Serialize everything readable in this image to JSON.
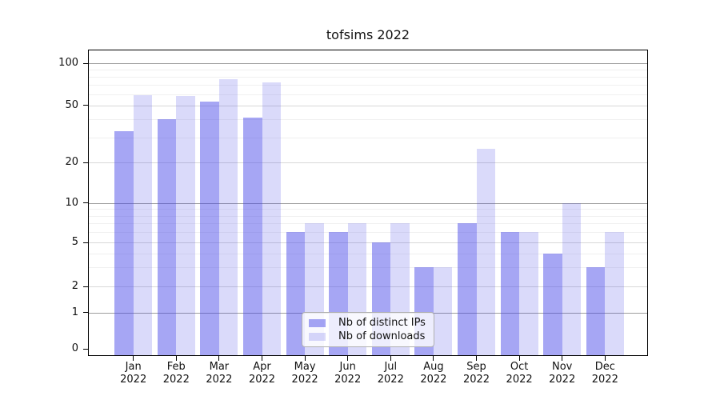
{
  "title": "tofsims 2022",
  "chart_data": {
    "type": "bar",
    "title": "tofsims 2022",
    "categories": [
      "Jan",
      "Feb",
      "Mar",
      "Apr",
      "May",
      "Jun",
      "Jul",
      "Aug",
      "Sep",
      "Oct",
      "Nov",
      "Dec"
    ],
    "category_year": "2022",
    "series": [
      {
        "name": "Nb of distinct IPs",
        "values": [
          33,
          40,
          53,
          41,
          6,
          6,
          5,
          3,
          7,
          6,
          4,
          3
        ]
      },
      {
        "name": "Nb of downloads",
        "values": [
          59,
          58,
          77,
          73,
          7,
          7,
          7,
          3,
          25,
          6,
          10,
          6
        ]
      }
    ],
    "y_axis": {
      "scale": "log-like",
      "ticks": [
        0,
        1,
        2,
        5,
        10,
        20,
        50,
        100
      ],
      "minor_ticks": [
        3,
        4,
        6,
        7,
        8,
        9,
        30,
        40,
        60,
        70,
        80,
        90
      ],
      "decade_ticks": [
        1,
        10,
        100
      ]
    },
    "legend": {
      "position": "bottom-center"
    },
    "colors": {
      "distinct_ips": "rgba(70,70,232,0.48)",
      "downloads": "rgba(70,70,232,0.20)",
      "grid_decade": "#9e9e9e",
      "grid_labeled": "#d8d8d8",
      "grid_minor": "#f0f0f0"
    }
  }
}
